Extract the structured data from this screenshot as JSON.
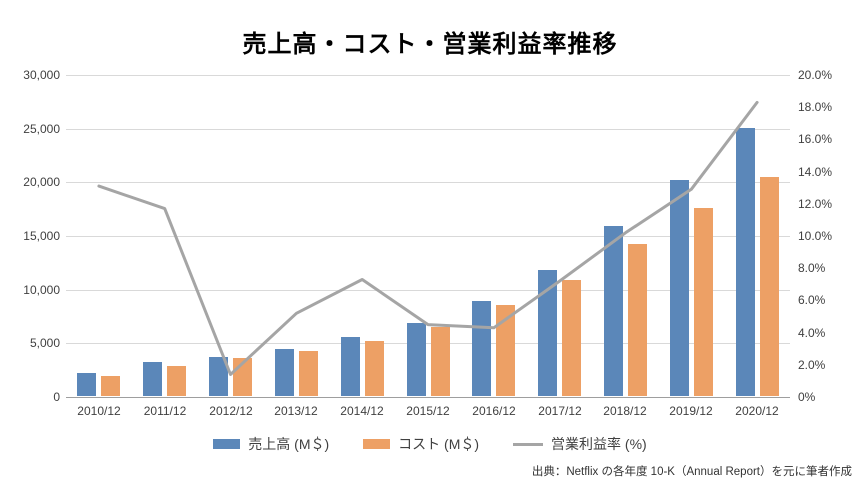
{
  "chart_data": {
    "type": "combo",
    "title": "売上高・コスト・営業利益率推移",
    "categories": [
      "2010/12",
      "2011/12",
      "2012/12",
      "2013/12",
      "2014/12",
      "2015/12",
      "2016/12",
      "2017/12",
      "2018/12",
      "2019/12",
      "2020/12"
    ],
    "series": [
      {
        "name": "売上高 (M＄)",
        "type": "bar",
        "axis": "left",
        "color": "#5B87B9",
        "values": [
          2162,
          3205,
          3609,
          4375,
          5505,
          6780,
          8831,
          11693,
          15794,
          20156,
          24996
        ]
      },
      {
        "name": "コスト (M＄)",
        "type": "bar",
        "axis": "left",
        "color": "#EDA065",
        "values": [
          1879,
          2829,
          3559,
          4147,
          5102,
          6474,
          8451,
          10854,
          14189,
          17552,
          20411
        ]
      },
      {
        "name": "営業利益率 (%)",
        "type": "line",
        "axis": "right",
        "color": "#A5A5A5",
        "values": [
          13.1,
          11.7,
          1.4,
          5.2,
          7.3,
          4.5,
          4.3,
          7.2,
          10.2,
          12.9,
          18.3
        ]
      }
    ],
    "left_axis": {
      "min": 0,
      "max": 30000,
      "step": 5000,
      "tick_labels": [
        "0",
        "5,000",
        "10,000",
        "15,000",
        "20,000",
        "25,000",
        "30,000"
      ]
    },
    "right_axis": {
      "min": 0,
      "max": 20,
      "step": 2,
      "tick_labels": [
        "0%",
        "2.0%",
        "4.0%",
        "6.0%",
        "8.0%",
        "10.0%",
        "12.0%",
        "14.0%",
        "16.0%",
        "18.0%",
        "20.0%"
      ]
    },
    "grid": true,
    "legend_position": "bottom",
    "colors": {
      "gridline": "#D9D9D9",
      "axis_line": "#9E9E9E",
      "tick_text": "#404040"
    }
  },
  "footer": {
    "source": "出典：Netflix の各年度 10-K（Annual Report）を元に筆者作成"
  }
}
